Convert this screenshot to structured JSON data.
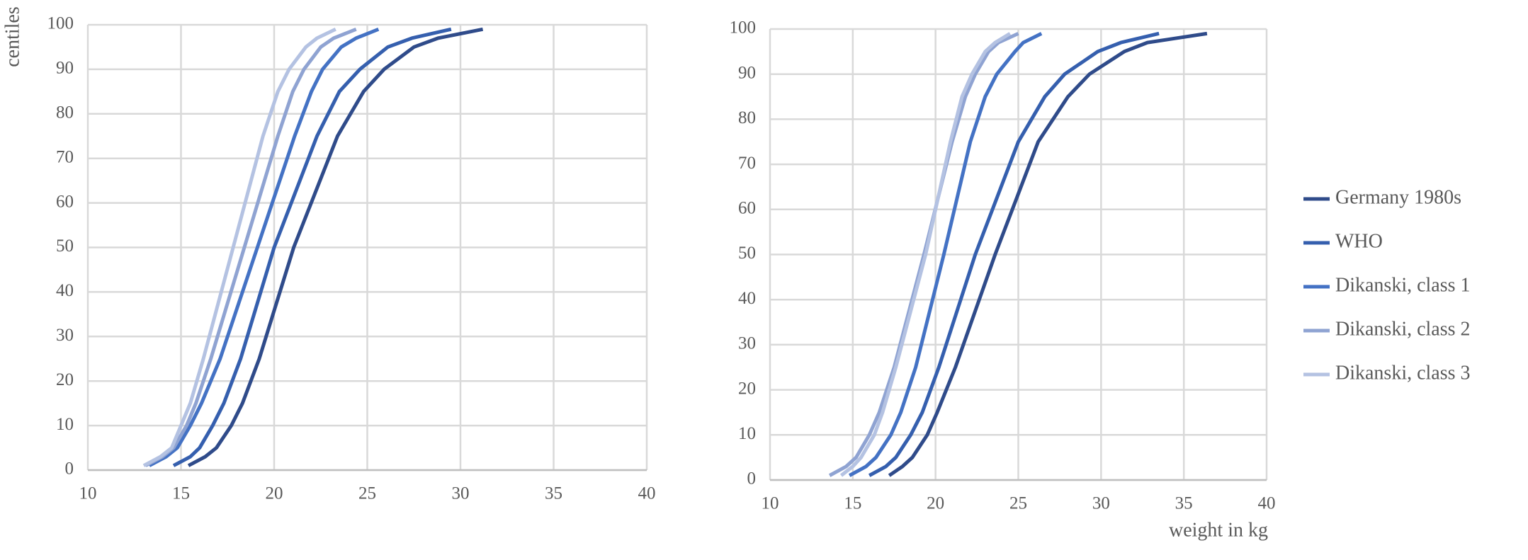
{
  "chart_data": [
    {
      "type": "line",
      "y_label": "centiles",
      "xlim": [
        10,
        40
      ],
      "ylim": [
        0,
        100
      ],
      "xticks": [
        10,
        15,
        20,
        25,
        30,
        35,
        40
      ],
      "yticks": [
        0,
        10,
        20,
        30,
        40,
        50,
        60,
        70,
        80,
        90,
        100
      ],
      "grid": true,
      "series": [
        {
          "name": "Germany 1980s",
          "color": "#2f4b8a",
          "x": [
            15.4,
            16.3,
            16.9,
            17.7,
            18.3,
            19.2,
            21.05,
            23.4,
            24.8,
            25.9,
            27.5,
            28.8,
            31.2
          ],
          "values": [
            1,
            3,
            5,
            10,
            15,
            25,
            50,
            75,
            85,
            90,
            95,
            97,
            99
          ]
        },
        {
          "name": "WHO",
          "color": "#355fae",
          "x": [
            14.6,
            15.5,
            16.0,
            16.7,
            17.3,
            18.2,
            20.0,
            22.3,
            23.5,
            24.6,
            26.1,
            27.4,
            29.5
          ],
          "values": [
            1,
            3,
            5,
            10,
            15,
            25,
            50,
            75,
            85,
            90,
            95,
            97,
            99
          ]
        },
        {
          "name": "Dikanski, class 1",
          "color": "#4472c4",
          "x": [
            13.3,
            14.2,
            14.8,
            15.5,
            16.1,
            17.1,
            19.1,
            21.1,
            22.0,
            22.6,
            23.6,
            24.4,
            25.6
          ],
          "values": [
            1,
            3,
            5,
            10,
            15,
            25,
            50,
            75,
            85,
            90,
            95,
            97,
            99
          ]
        },
        {
          "name": "Dikanski, class 2",
          "color": "#8fa3d2",
          "x": [
            13.1,
            14.0,
            14.6,
            15.3,
            15.8,
            16.6,
            18.4,
            20.2,
            21.0,
            21.6,
            22.5,
            23.2,
            24.4
          ],
          "values": [
            1,
            3,
            5,
            10,
            15,
            25,
            50,
            75,
            85,
            90,
            95,
            97,
            99
          ]
        },
        {
          "name": "Dikanski, class 3",
          "color": "#b4c2e2",
          "x": [
            13.0,
            13.9,
            14.5,
            15.0,
            15.5,
            16.2,
            17.8,
            19.4,
            20.2,
            20.8,
            21.7,
            22.3,
            23.3
          ],
          "values": [
            1,
            3,
            5,
            10,
            15,
            25,
            50,
            75,
            85,
            90,
            95,
            97,
            99
          ]
        }
      ]
    },
    {
      "type": "line",
      "x_label": "weight in kg",
      "xlim": [
        10,
        40
      ],
      "ylim": [
        0,
        100
      ],
      "xticks": [
        10,
        15,
        20,
        25,
        30,
        35,
        40
      ],
      "yticks": [
        0,
        10,
        20,
        30,
        40,
        50,
        60,
        70,
        80,
        90,
        100
      ],
      "grid": true,
      "legend": "right",
      "series": [
        {
          "name": "Germany 1980s",
          "color": "#2f4b8a",
          "x": [
            17.2,
            18.0,
            18.6,
            19.5,
            20.1,
            21.2,
            23.6,
            26.2,
            28.0,
            29.3,
            31.4,
            32.8,
            36.4
          ],
          "values": [
            1,
            3,
            5,
            10,
            15,
            25,
            50,
            75,
            85,
            90,
            95,
            97,
            99
          ]
        },
        {
          "name": "WHO",
          "color": "#355fae",
          "x": [
            16.0,
            17.0,
            17.6,
            18.5,
            19.2,
            20.2,
            22.4,
            25.0,
            26.6,
            27.8,
            29.8,
            31.2,
            33.5
          ],
          "values": [
            1,
            3,
            5,
            10,
            15,
            25,
            50,
            75,
            85,
            90,
            95,
            97,
            99
          ]
        },
        {
          "name": "Dikanski, class 1",
          "color": "#4472c4",
          "x": [
            14.8,
            15.8,
            16.4,
            17.3,
            17.9,
            18.8,
            20.5,
            22.1,
            23.0,
            23.7,
            24.8,
            25.3,
            26.4
          ],
          "values": [
            1,
            3,
            5,
            10,
            15,
            25,
            50,
            75,
            85,
            90,
            95,
            97,
            99
          ]
        },
        {
          "name": "Dikanski, class 2",
          "color": "#8fa3d2",
          "x": [
            13.6,
            14.6,
            15.2,
            16.0,
            16.6,
            17.5,
            19.3,
            21.0,
            21.8,
            22.4,
            23.2,
            23.8,
            25.0
          ],
          "values": [
            1,
            3,
            5,
            10,
            15,
            25,
            50,
            75,
            85,
            90,
            95,
            97,
            99
          ]
        },
        {
          "name": "Dikanski, class 3",
          "color": "#b4c2e2",
          "x": [
            14.3,
            15.0,
            15.5,
            16.3,
            16.8,
            17.6,
            19.4,
            20.9,
            21.6,
            22.2,
            23.0,
            23.6,
            24.5
          ],
          "values": [
            1,
            3,
            5,
            10,
            15,
            25,
            50,
            75,
            85,
            90,
            95,
            97,
            99
          ]
        }
      ]
    }
  ]
}
